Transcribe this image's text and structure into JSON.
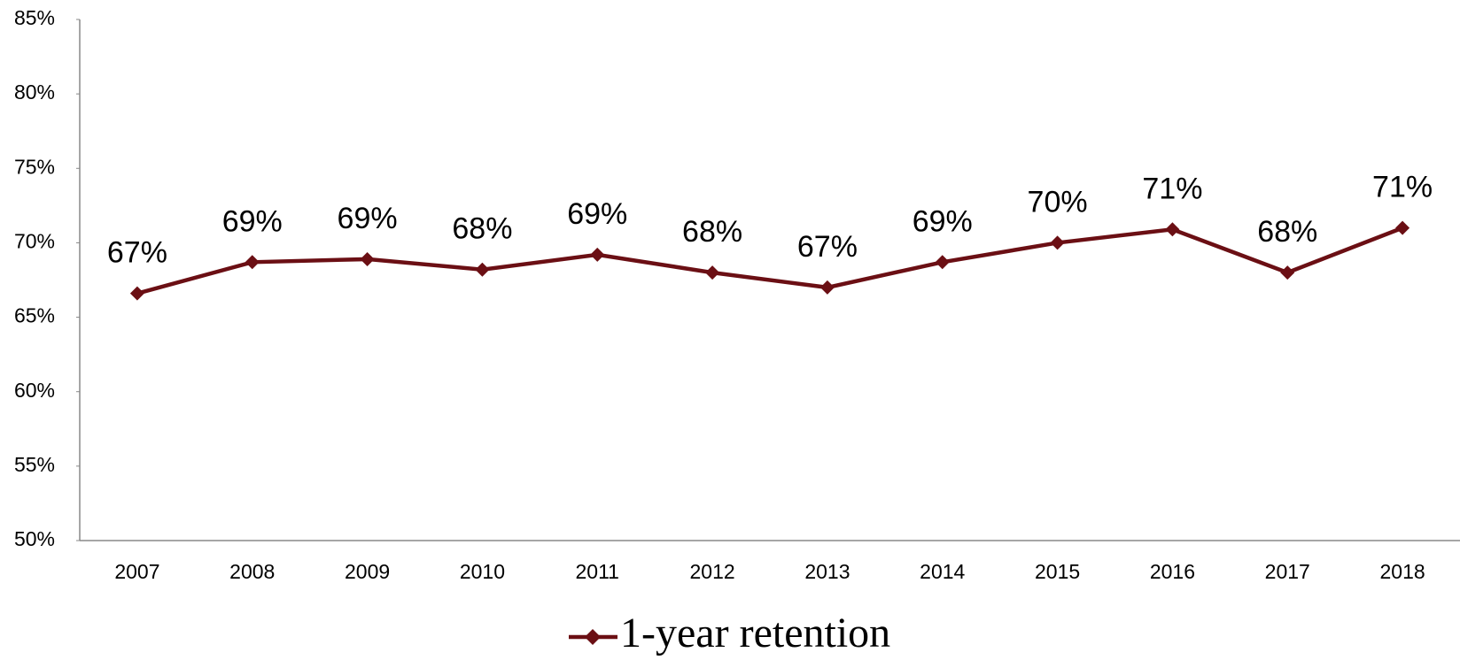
{
  "chart_data": {
    "type": "line",
    "categories": [
      "2007",
      "2008",
      "2009",
      "2010",
      "2011",
      "2012",
      "2013",
      "2014",
      "2015",
      "2016",
      "2017",
      "2018"
    ],
    "series": [
      {
        "name": "1-year retention",
        "color": "#6b0f14",
        "values": [
          66.6,
          68.7,
          68.9,
          68.2,
          69.2,
          68.0,
          67.0,
          68.7,
          70.0,
          70.9,
          68.0,
          71.0
        ],
        "value_labels": [
          "67%",
          "69%",
          "69%",
          "68%",
          "69%",
          "68%",
          "67%",
          "69%",
          "70%",
          "71%",
          "68%",
          "71%"
        ]
      }
    ],
    "ylim": [
      50,
      85
    ],
    "yticks": [
      {
        "value": 50,
        "label": "50%"
      },
      {
        "value": 55,
        "label": "55%"
      },
      {
        "value": 60,
        "label": "60%"
      },
      {
        "value": 65,
        "label": "65%"
      },
      {
        "value": 70,
        "label": "70%"
      },
      {
        "value": 75,
        "label": "75%"
      },
      {
        "value": 80,
        "label": "80%"
      },
      {
        "value": 85,
        "label": "85%"
      }
    ],
    "grid": false
  }
}
